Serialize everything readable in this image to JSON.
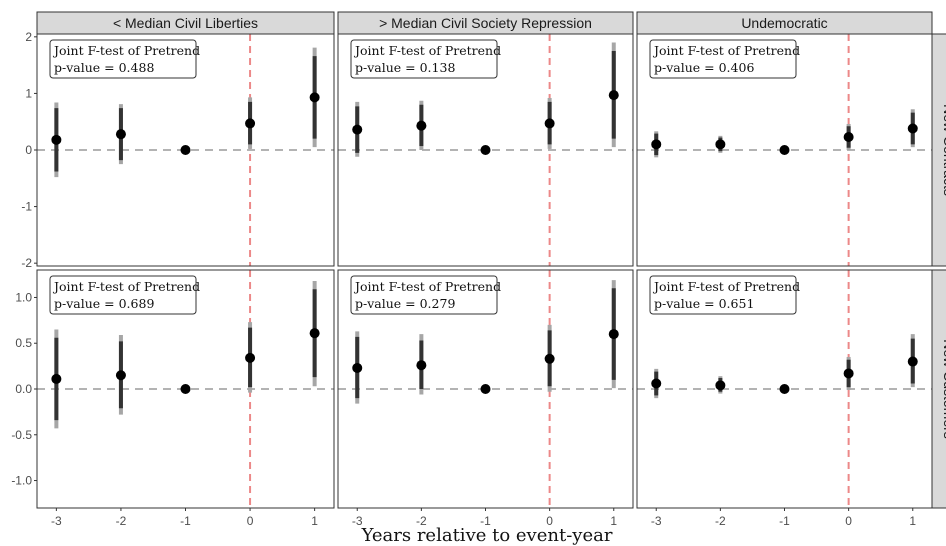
{
  "chart_data": {
    "type": "scatter",
    "xlabel": "Years relative to event-year",
    "x": [
      -3,
      -2,
      -1,
      0,
      1
    ],
    "columns": [
      "< Median Civil Liberties",
      "> Median Civil Society Repression",
      "Undemocratic"
    ],
    "rows": [
      "New Contracts",
      "New Customers"
    ],
    "test_title": "Joint F-test of Pretrend",
    "y_ticks": {
      "New Contracts": [
        "-2",
        "-1",
        "0",
        "1",
        "2"
      ],
      "New Customers": [
        "-1.0",
        "-0.5",
        "0.0",
        "0.5",
        "1.0"
      ]
    },
    "ylim": {
      "New Contracts": [
        -2.05,
        2.05
      ],
      "New Customers": [
        -1.3,
        1.3
      ]
    },
    "x_ticks": [
      "-3",
      "-2",
      "-1",
      "0",
      "1"
    ],
    "panels": [
      {
        "row": "New Contracts",
        "column": "< Median Civil Liberties",
        "p_value": "p-value = 0.488",
        "estimates": [
          0.18,
          0.28,
          0.0,
          0.47,
          0.93
        ],
        "ci95_lower": [
          -0.48,
          -0.25,
          0.0,
          0.02,
          0.05
        ],
        "ci95_upper": [
          0.84,
          0.81,
          0.0,
          0.93,
          1.81
        ],
        "ci90_lower": [
          -0.38,
          -0.18,
          0.0,
          0.1,
          0.2
        ],
        "ci90_upper": [
          0.74,
          0.74,
          0.0,
          0.85,
          1.66
        ]
      },
      {
        "row": "New Contracts",
        "column": "> Median Civil Society Repression",
        "p_value": "p-value = 0.138",
        "estimates": [
          0.36,
          0.43,
          0.0,
          0.47,
          0.97
        ],
        "ci95_lower": [
          -0.12,
          0.0,
          0.0,
          0.02,
          0.05
        ],
        "ci95_upper": [
          0.85,
          0.87,
          0.0,
          0.92,
          1.9
        ],
        "ci90_lower": [
          -0.05,
          0.07,
          0.0,
          0.1,
          0.2
        ],
        "ci90_upper": [
          0.77,
          0.8,
          0.0,
          0.85,
          1.75
        ]
      },
      {
        "row": "New Contracts",
        "column": "Undemocratic",
        "p_value": "p-value = 0.406",
        "estimates": [
          0.1,
          0.1,
          0.0,
          0.23,
          0.38
        ],
        "ci95_lower": [
          -0.13,
          -0.05,
          0.0,
          0.0,
          0.05
        ],
        "ci95_upper": [
          0.33,
          0.25,
          0.0,
          0.46,
          0.72
        ],
        "ci90_lower": [
          -0.09,
          -0.02,
          0.0,
          0.04,
          0.1
        ],
        "ci90_upper": [
          0.29,
          0.22,
          0.0,
          0.42,
          0.66
        ]
      },
      {
        "row": "New Customers",
        "column": "< Median Civil Liberties",
        "p_value": "p-value = 0.689",
        "estimates": [
          0.11,
          0.15,
          0.0,
          0.34,
          0.61
        ],
        "ci95_lower": [
          -0.43,
          -0.28,
          0.0,
          -0.04,
          0.03
        ],
        "ci95_upper": [
          0.65,
          0.59,
          0.0,
          0.73,
          1.18
        ],
        "ci90_lower": [
          -0.34,
          -0.21,
          0.0,
          0.02,
          0.13
        ],
        "ci90_upper": [
          0.56,
          0.52,
          0.0,
          0.67,
          1.09
        ]
      },
      {
        "row": "New Customers",
        "column": "> Median Civil Society Repression",
        "p_value": "p-value = 0.279",
        "estimates": [
          0.23,
          0.26,
          0.0,
          0.33,
          0.6
        ],
        "ci95_lower": [
          -0.16,
          -0.06,
          0.0,
          -0.03,
          0.01
        ],
        "ci95_upper": [
          0.63,
          0.6,
          0.0,
          0.7,
          1.19
        ],
        "ci90_lower": [
          -0.1,
          0.0,
          0.0,
          0.03,
          0.1
        ],
        "ci90_upper": [
          0.57,
          0.53,
          0.0,
          0.64,
          1.1
        ]
      },
      {
        "row": "New Customers",
        "column": "Undemocratic",
        "p_value": "p-value = 0.651",
        "estimates": [
          0.06,
          0.04,
          0.0,
          0.17,
          0.3
        ],
        "ci95_lower": [
          -0.1,
          -0.05,
          0.0,
          -0.01,
          0.02
        ],
        "ci95_upper": [
          0.22,
          0.14,
          0.0,
          0.35,
          0.6
        ],
        "ci90_lower": [
          -0.07,
          -0.03,
          0.0,
          0.02,
          0.06
        ],
        "ci90_upper": [
          0.19,
          0.12,
          0.0,
          0.32,
          0.55
        ]
      }
    ],
    "colors": {
      "ci95": "#a6a6a6",
      "ci90": "#333333",
      "point": "#000000",
      "zero_line": "#b3b3b3",
      "event_line": "#ec8888",
      "strip_fill": "#d9d9d9",
      "panel_border": "#333333"
    },
    "grid": false
  }
}
